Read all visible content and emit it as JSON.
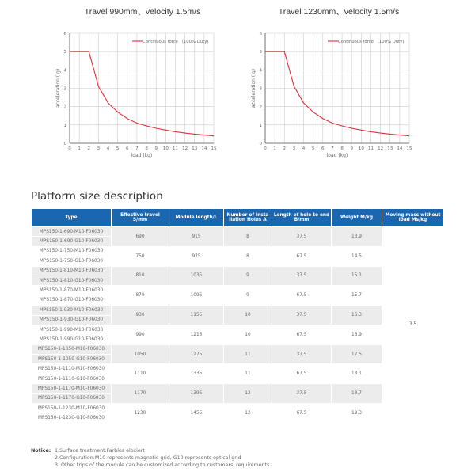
{
  "charts_titles": [
    "Travel 990mm、velocity 1.5m/s",
    "Travel 1230mm、velocity 1.5m/s"
  ],
  "chart_data": [
    {
      "type": "line",
      "title": "Travel 990mm、velocity 1.5m/s",
      "xlabel": "load  (kg)",
      "ylabel": "acceleration ( g)",
      "xlim": [
        0,
        15
      ],
      "ylim": [
        0,
        6
      ],
      "grid": true,
      "legend": "top-right",
      "color": "#e0303c",
      "series": [
        {
          "name": "Continuous force （100% Duty)",
          "x": [
            0,
            1,
            2,
            3,
            4,
            5,
            6,
            7,
            8,
            9,
            10,
            11,
            12,
            13,
            14,
            15
          ],
          "y": [
            5,
            5,
            5,
            3.1,
            2.2,
            1.7,
            1.35,
            1.1,
            0.95,
            0.82,
            0.72,
            0.63,
            0.56,
            0.5,
            0.45,
            0.4
          ]
        }
      ]
    },
    {
      "type": "line",
      "title": "Travel 1230mm、velocity 1.5m/s",
      "xlabel": "load  (kg)",
      "ylabel": "acceleration ( g)",
      "xlim": [
        0,
        15
      ],
      "ylim": [
        0,
        6
      ],
      "grid": true,
      "legend": "top-right",
      "color": "#e0303c",
      "series": [
        {
          "name": "Continuous force （100% Duty)",
          "x": [
            0,
            1,
            2,
            3,
            4,
            5,
            6,
            7,
            8,
            9,
            10,
            11,
            12,
            13,
            14,
            15
          ],
          "y": [
            5,
            5,
            5,
            3.1,
            2.2,
            1.7,
            1.35,
            1.1,
            0.95,
            0.82,
            0.72,
            0.63,
            0.56,
            0.5,
            0.45,
            0.4
          ]
        }
      ]
    }
  ],
  "section_title": "Platform size description",
  "table": {
    "headers": [
      "Type",
      "Effective travel S/mm",
      "Module length/L",
      "Number of Insta llation Holes A",
      "Length of hole to end B/mm",
      "Weight M/kg",
      "Moving mass without load Ms/kg"
    ],
    "moving_mass": "3.5",
    "groups": [
      {
        "types": [
          "MPS150-1-690-M10-F06030",
          "MPS150-1-690-G10-F06030"
        ],
        "travel": "690",
        "length": "915",
        "holes": "8",
        "b": "37.5",
        "weight": "13.9"
      },
      {
        "types": [
          "MPS150-1-750-M10-F06030",
          "MPS150-1-750-G10-F06030"
        ],
        "travel": "750",
        "length": "975",
        "holes": "8",
        "b": "67.5",
        "weight": "14.5"
      },
      {
        "types": [
          "MPS150-1-810-M10-F06030",
          "MPS150-1-810-G10-F06030"
        ],
        "travel": "810",
        "length": "1035",
        "holes": "9",
        "b": "37.5",
        "weight": "15.1"
      },
      {
        "types": [
          "MPS150-1-870-M10-F06030",
          "MPS150-1-870-G10-F06030"
        ],
        "travel": "870",
        "length": "1095",
        "holes": "9",
        "b": "67.5",
        "weight": "15.7"
      },
      {
        "types": [
          "MPS150-1-930-M10-F06030",
          "MPS150-1-930-G10-F06030"
        ],
        "travel": "930",
        "length": "1155",
        "holes": "10",
        "b": "37.5",
        "weight": "16.3"
      },
      {
        "types": [
          "MPS150-1-990-M10-F06030",
          "MPS150-1-990-G10-F06030"
        ],
        "travel": "990",
        "length": "1215",
        "holes": "10",
        "b": "67.5",
        "weight": "16.9"
      },
      {
        "types": [
          "MPS150-1-1050-M10-F06030",
          "MPS150-1-1050-G10-F06030"
        ],
        "travel": "1050",
        "length": "1275",
        "holes": "11",
        "b": "37.5",
        "weight": "17.5"
      },
      {
        "types": [
          "MPS150-1-1110-M10-F06030",
          "MPS150-1-1110-G10-F06030"
        ],
        "travel": "1110",
        "length": "1335",
        "holes": "11",
        "b": "67.5",
        "weight": "18.1"
      },
      {
        "types": [
          "MPS150-1-1170-M10-F06030",
          "MPS150-1-1170-G10-F06030"
        ],
        "travel": "1170",
        "length": "1395",
        "holes": "12",
        "b": "37.5",
        "weight": "18.7"
      },
      {
        "types": [
          "MPS150-1-1230-M10-F06030",
          "MPS150-1-1230-G10-F06030"
        ],
        "travel": "1230",
        "length": "1455",
        "holes": "12",
        "b": "67.5",
        "weight": "19.3"
      }
    ]
  },
  "notice": {
    "label": "Notice:",
    "lines": [
      "1.Surface treatment:Farblos eloxiert",
      "2.Configuration:M10 represents magnetic grid, G10 represents optical grid",
      "3. Other trips of the module can be customized according to customers' requirements"
    ]
  }
}
